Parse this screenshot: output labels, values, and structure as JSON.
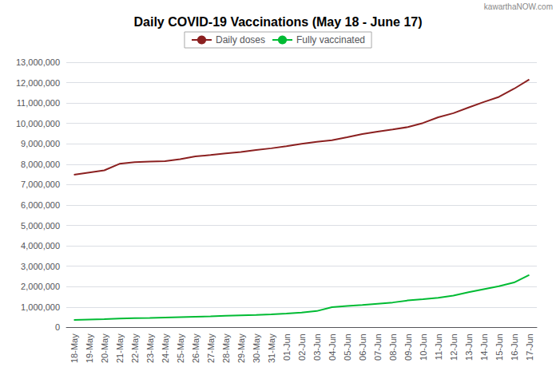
{
  "chart_data": {
    "type": "line",
    "title": "Daily COVID-19 Vaccinations (May 18 - June 17)",
    "annotations": [
      "kawarthaNOW.com"
    ],
    "categories": [
      "18-May",
      "19-May",
      "20-May",
      "21-May",
      "22-May",
      "23-May",
      "24-May",
      "25-May",
      "26-May",
      "27-May",
      "28-May",
      "29-May",
      "30-May",
      "31-May",
      "01-Jun",
      "02-Jun",
      "03-Jun",
      "04-Jun",
      "05-Jun",
      "06-Jun",
      "07-Jun",
      "08-Jun",
      "09-Jun",
      "10-Jun",
      "11-Jun",
      "12-Jun",
      "13-Jun",
      "14-Jun",
      "15-Jun",
      "16-Jun",
      "17-Jun"
    ],
    "series": [
      {
        "name": "Daily doses",
        "color": "#8B2020",
        "values": [
          7480000,
          7590000,
          7700000,
          8020000,
          8100000,
          8130000,
          8150000,
          8250000,
          8380000,
          8450000,
          8530000,
          8600000,
          8700000,
          8780000,
          8880000,
          9000000,
          9100000,
          9180000,
          9320000,
          9480000,
          9600000,
          9700000,
          9820000,
          10020000,
          10300000,
          10500000,
          10780000,
          11050000,
          11300000,
          11700000,
          12150000
        ]
      },
      {
        "name": "Fully vaccinated",
        "color": "#00BB33",
        "values": [
          360000,
          380000,
          400000,
          430000,
          450000,
          460000,
          480000,
          500000,
          520000,
          540000,
          570000,
          590000,
          610000,
          640000,
          680000,
          730000,
          800000,
          990000,
          1050000,
          1100000,
          1160000,
          1220000,
          1320000,
          1380000,
          1450000,
          1560000,
          1720000,
          1870000,
          2020000,
          2200000,
          2570000
        ]
      }
    ],
    "ylim": [
      0,
      13000000
    ],
    "yticks": [
      0,
      {
        "value": 1000000,
        "label": "1,000,000"
      },
      {
        "value": 2000000,
        "label": "2,000,000"
      },
      {
        "value": 3000000,
        "label": "3,000,000"
      },
      {
        "value": 4000000,
        "label": "4,000,000"
      },
      {
        "value": 5000000,
        "label": "5,000,000"
      },
      {
        "value": 6000000,
        "label": "6,000,000"
      },
      {
        "value": 7000000,
        "label": "7,000,000"
      },
      {
        "value": 8000000,
        "label": "8,000,000"
      },
      {
        "value": 9000000,
        "label": "9,000,000"
      },
      {
        "value": 10000000,
        "label": "10,000,000"
      },
      {
        "value": 11000000,
        "label": "11,000,000"
      },
      {
        "value": 12000000,
        "label": "12,000,000"
      },
      {
        "value": 13000000,
        "label": "13,000,000"
      }
    ],
    "grid": true,
    "legend": "upper center"
  }
}
